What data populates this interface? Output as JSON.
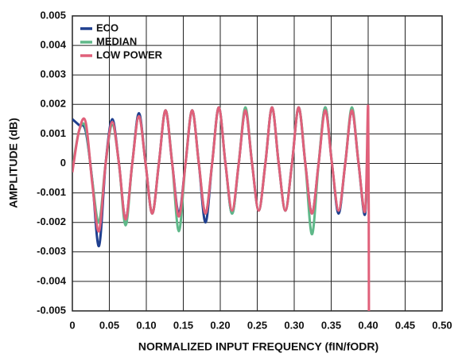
{
  "chart_data": {
    "type": "line",
    "x_label": "NORMALIZED INPUT FREQUENCY (fIN/fODR)",
    "y_label": "AMPLITUDE (dB)",
    "x": [
      0,
      0.009,
      0.018,
      0.027,
      0.036,
      0.045,
      0.054,
      0.063,
      0.072,
      0.081,
      0.09,
      0.099,
      0.108,
      0.117,
      0.126,
      0.135,
      0.144,
      0.153,
      0.162,
      0.171,
      0.18,
      0.189,
      0.198,
      0.207,
      0.216,
      0.225,
      0.234,
      0.243,
      0.252,
      0.261,
      0.27,
      0.279,
      0.288,
      0.297,
      0.306,
      0.315,
      0.324,
      0.333,
      0.342,
      0.351,
      0.36,
      0.369,
      0.378,
      0.387,
      0.396,
      0.4,
      0.401
    ],
    "series": [
      {
        "name": "ECO",
        "color": "#1f3f8f",
        "values": [
          0.0015,
          0.0013,
          0.0011,
          -0.0006,
          -0.0028,
          0,
          0.0015,
          0,
          -0.0019,
          0,
          0.0017,
          0,
          -0.0017,
          0,
          0.0018,
          0,
          -0.0017,
          0,
          0.0018,
          0,
          -0.002,
          0,
          0.0019,
          0,
          -0.0017,
          0,
          0.0018,
          0,
          -0.0016,
          0,
          0.0019,
          0,
          -0.0016,
          0,
          0.0019,
          0,
          -0.0017,
          0,
          0.0019,
          0,
          -0.0017,
          0,
          0.0018,
          0,
          -0.0017,
          0.0019,
          null
        ]
      },
      {
        "name": "MEDIAN",
        "color": "#5fb889",
        "values": [
          -0.0002,
          0.0011,
          0.0012,
          -0.0006,
          -0.002,
          0,
          0.0013,
          0,
          -0.0021,
          0,
          0.0016,
          0,
          -0.0017,
          0,
          0.0018,
          0,
          -0.0023,
          0,
          0.0018,
          0,
          -0.0017,
          0,
          0.0019,
          0,
          -0.0017,
          0,
          0.0019,
          0,
          -0.0016,
          0,
          0.0019,
          0,
          -0.0016,
          0,
          0.0019,
          0,
          -0.0024,
          0,
          0.0019,
          0,
          -0.0016,
          0,
          0.0019,
          0,
          -0.0016,
          0.0019,
          null
        ]
      },
      {
        "name": "LOW POWER",
        "color": "#e0607a",
        "values": [
          -0.0003,
          0.0011,
          0.0014,
          -0.0007,
          -0.0023,
          0,
          0.0014,
          0,
          -0.0019,
          0,
          0.0016,
          0,
          -0.0017,
          0,
          0.0018,
          0,
          -0.0018,
          0,
          0.0018,
          0,
          -0.0017,
          0,
          0.0019,
          0,
          -0.0016,
          0,
          0.0018,
          0,
          -0.0016,
          0,
          0.0019,
          0,
          -0.0016,
          0,
          0.0019,
          0,
          -0.0017,
          0,
          0.0018,
          0,
          -0.0016,
          0,
          0.0018,
          0,
          -0.0016,
          0.0019,
          -0.005
        ]
      }
    ],
    "xlim": [
      0,
      0.5
    ],
    "ylim": [
      -0.005,
      0.005
    ],
    "xticks": [
      0,
      0.05,
      {
        "value": 0.1,
        "label": "0.10"
      },
      0.15,
      {
        "value": 0.2,
        "label": "0.20"
      },
      0.25,
      {
        "value": 0.3,
        "label": "0.30"
      },
      0.35,
      {
        "value": 0.4,
        "label": "0.40"
      },
      0.45,
      {
        "value": 0.5,
        "label": "0.50"
      }
    ],
    "yticks": [
      -0.005,
      -0.004,
      -0.003,
      -0.002,
      -0.001,
      0,
      0.001,
      0.002,
      0.003,
      0.004,
      0.005
    ],
    "grid": true,
    "legend": "upper-left"
  }
}
